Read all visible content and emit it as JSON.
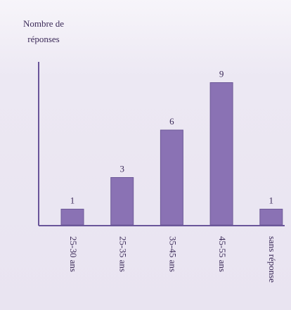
{
  "chart_data": {
    "type": "bar",
    "ylabel": [
      "Nombre de",
      "réponses"
    ],
    "categories": [
      "25-30 ans",
      "25-35 ans",
      "35-45 ans",
      "45-55 ans",
      "sans réponse"
    ],
    "values": [
      1,
      3,
      6,
      9,
      1
    ],
    "color": "#8a72b4",
    "ylim": [
      0,
      10
    ]
  }
}
